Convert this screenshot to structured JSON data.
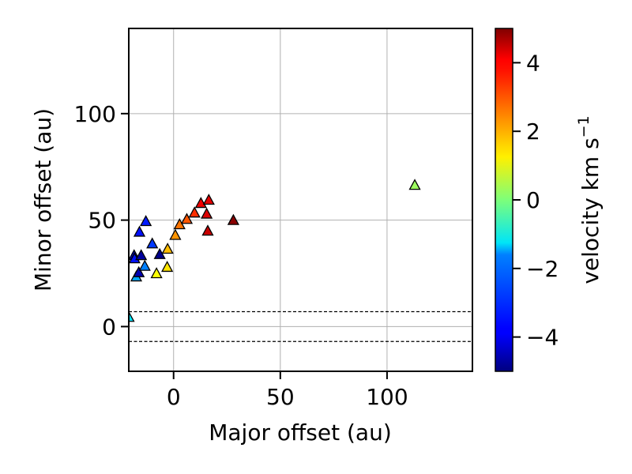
{
  "chart_data": {
    "type": "scatter",
    "marker": "triangle",
    "xlabel": "Major offset (au)",
    "ylabel": "Minor offset (au)",
    "xlim": [
      -21,
      140
    ],
    "ylim": [
      -21,
      140
    ],
    "xticks": [
      0,
      50,
      100
    ],
    "yticks": [
      0,
      50,
      100
    ],
    "xtick_labels": [
      "0",
      "50",
      "100"
    ],
    "ytick_labels": [
      "0",
      "50",
      "100"
    ],
    "grid": true,
    "hlines": [
      7,
      -7
    ],
    "hline_style": "dashed",
    "colorbar": {
      "label": "velocity km s",
      "label_superscript": "−1",
      "colormap": "jet",
      "range": [
        -5,
        5
      ],
      "ticks": [
        4,
        2,
        0,
        -2,
        -4
      ],
      "tick_labels": [
        "4",
        "2",
        "0",
        "−2",
        "−4"
      ]
    },
    "points": [
      {
        "x": -21,
        "y": 4.5,
        "v": -1.5
      },
      {
        "x": -18.5,
        "y": 33.5,
        "v": -4.5
      },
      {
        "x": -18.3,
        "y": 32.0,
        "v": -3.6
      },
      {
        "x": -17.5,
        "y": 23.5,
        "v": -2.1
      },
      {
        "x": -16.3,
        "y": 25.5,
        "v": -4.5
      },
      {
        "x": -16.0,
        "y": 44.5,
        "v": -3.6
      },
      {
        "x": -15.2,
        "y": 33.5,
        "v": -4.7
      },
      {
        "x": -13.5,
        "y": 28.5,
        "v": -2.5
      },
      {
        "x": -13.0,
        "y": 49.5,
        "v": -3.5
      },
      {
        "x": -10.0,
        "y": 39.0,
        "v": -3.2
      },
      {
        "x": -8.0,
        "y": 25.0,
        "v": 1.2
      },
      {
        "x": -6.5,
        "y": 34.0,
        "v": -4.9
      },
      {
        "x": -3.0,
        "y": 28.0,
        "v": 1.5
      },
      {
        "x": -2.8,
        "y": 36.5,
        "v": 1.9
      },
      {
        "x": 0.8,
        "y": 43.0,
        "v": 2.3
      },
      {
        "x": 2.8,
        "y": 48.0,
        "v": 2.6
      },
      {
        "x": 6.2,
        "y": 50.5,
        "v": 2.9
      },
      {
        "x": 9.8,
        "y": 53.5,
        "v": 3.3
      },
      {
        "x": 12.8,
        "y": 58.0,
        "v": 3.9
      },
      {
        "x": 15.5,
        "y": 53.0,
        "v": 4.1
      },
      {
        "x": 16.0,
        "y": 45.0,
        "v": 4.3
      },
      {
        "x": 16.5,
        "y": 59.5,
        "v": 4.0
      },
      {
        "x": 28.0,
        "y": 50.0,
        "v": 4.9
      },
      {
        "x": 113.0,
        "y": 66.5,
        "v": 0.3
      }
    ]
  }
}
